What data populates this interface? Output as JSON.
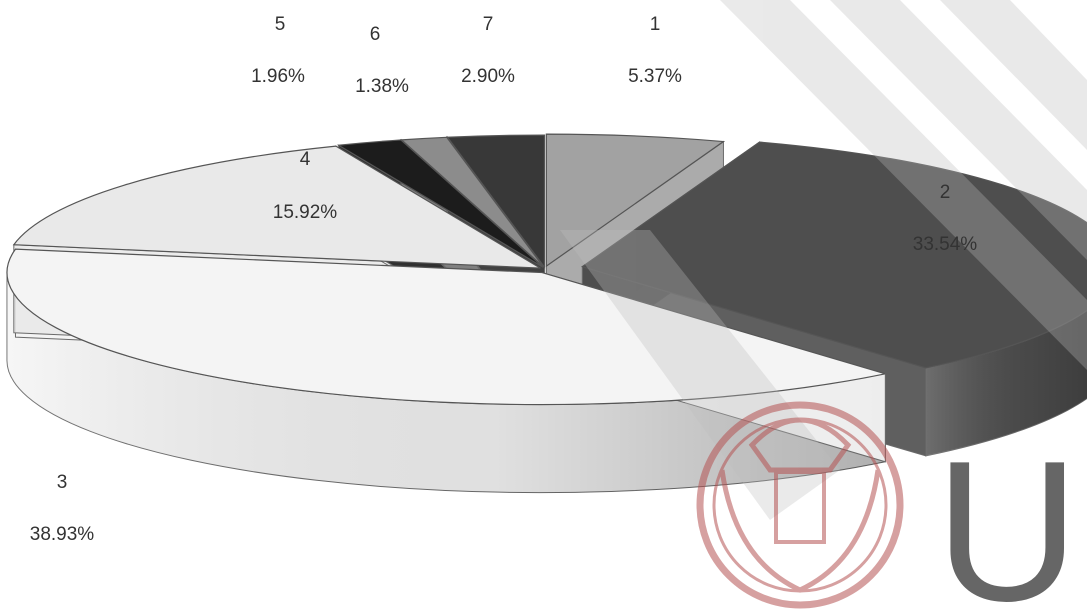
{
  "chart_data": {
    "type": "pie",
    "three_d": true,
    "exploded": true,
    "legend": "none",
    "slices": [
      {
        "category": "1",
        "value": 5.37,
        "label": "5.37%",
        "color": "#a2a2a2"
      },
      {
        "category": "2",
        "value": 33.54,
        "label": "33.54%",
        "color": "#4e4e4e"
      },
      {
        "category": "3",
        "value": 38.93,
        "label": "38.93%",
        "color": "#f4f4f4"
      },
      {
        "category": "4",
        "value": 15.92,
        "label": "15.92%",
        "color": "#e9e9e9"
      },
      {
        "category": "5",
        "value": 1.96,
        "label": "1.96%",
        "color": "#1c1c1c"
      },
      {
        "category": "6",
        "value": 1.38,
        "label": "1.38%",
        "color": "#8c8c8c"
      },
      {
        "category": "7",
        "value": 2.9,
        "label": "2.90%",
        "color": "#383838"
      }
    ]
  },
  "watermark": {
    "letter": "U",
    "color": "#e6b9b9",
    "band_color": "#bdbdbd",
    "seal_color": "#b55353"
  }
}
